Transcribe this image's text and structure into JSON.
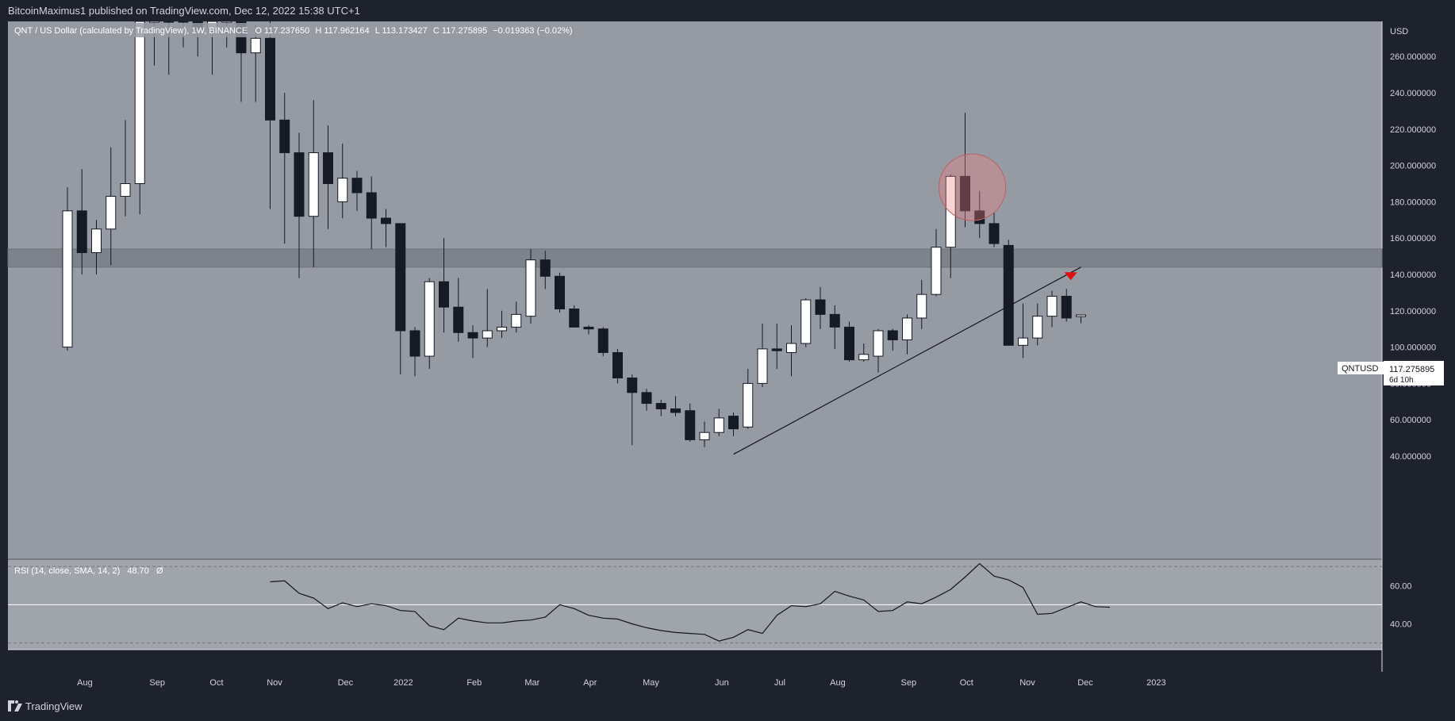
{
  "header": {
    "published": "BitcoinMaximus1 published on TradingView.com, Dec 12, 2022 15:38 UTC+1"
  },
  "footer": {
    "brand": "TradingView"
  },
  "chart": {
    "symbol_line": "QNT / US Dollar (calculated by TradingView), 1W, BINANCE",
    "o_label": "O",
    "o_value": "117.237650",
    "h_label": "H",
    "h_value": "117.962164",
    "l_label": "L",
    "l_value": "113.173427",
    "c_label": "C",
    "c_value": "117.275895",
    "change": "−0.019363 (−0.02%)",
    "currency": "USD",
    "price_tag_symbol": "QNTUSD",
    "price_tag_value": "117.275895",
    "price_tag_countdown": "6d 10h",
    "rsi_label": "RSI (14, close, SMA, 14, 2)",
    "rsi_value": "48.70",
    "rsi_extra": "Ø"
  },
  "colors": {
    "up": "#ffffff",
    "down": "#161a25",
    "bg_price": "#959aa3",
    "bg_rsi": "#a0a4ab",
    "zone": "#7c8088",
    "circle": "#f08080",
    "arrow": "#e01010"
  },
  "chart_data": {
    "type": "candlestick",
    "interval": "1W",
    "price_axis": {
      "ylim": [
        35,
        272
      ],
      "ticks": [
        40,
        60,
        80,
        100,
        120,
        140,
        160,
        180,
        200,
        220,
        240,
        260
      ],
      "tick_labels": [
        "40.000000",
        "60.000000",
        "80.000000",
        "100.000000",
        "120.000000",
        "140.000000",
        "160.000000",
        "180.000000",
        "200.000000",
        "220.000000",
        "240.000000",
        "260.000000"
      ]
    },
    "x_axis_labels": [
      "Aug",
      "Sep",
      "Oct",
      "Nov",
      "Dec",
      "2022",
      "Feb",
      "Mar",
      "Apr",
      "May",
      "Jun",
      "Jul",
      "Aug",
      "Sep",
      "Oct",
      "Nov",
      "Dec",
      "2023"
    ],
    "x_axis_label_weeks": [
      1.2,
      6.2,
      10.3,
      14.3,
      19.2,
      23.2,
      28.1,
      32.1,
      36.1,
      40.3,
      45.2,
      49.2,
      53.2,
      58.1,
      62.1,
      66.3,
      70.3,
      75.2
    ],
    "candles": [
      {
        "o": 100,
        "h": 188,
        "l": 98,
        "c": 175
      },
      {
        "o": 175,
        "h": 198,
        "l": 140,
        "c": 152
      },
      {
        "o": 152,
        "h": 170,
        "l": 140,
        "c": 165
      },
      {
        "o": 165,
        "h": 210,
        "l": 145,
        "c": 183
      },
      {
        "o": 183,
        "h": 225,
        "l": 172,
        "c": 190
      },
      {
        "o": 190,
        "h": 300,
        "l": 173,
        "c": 300
      },
      {
        "o": 300,
        "h": 320,
        "l": 255,
        "c": 300
      },
      {
        "o": 300,
        "h": 310,
        "l": 250,
        "c": 290
      },
      {
        "o": 290,
        "h": 300,
        "l": 265,
        "c": 280
      },
      {
        "o": 280,
        "h": 290,
        "l": 260,
        "c": 275
      },
      {
        "o": 275,
        "h": 290,
        "l": 250,
        "c": 280
      },
      {
        "o": 280,
        "h": 300,
        "l": 265,
        "c": 285
      },
      {
        "o": 285,
        "h": 300,
        "l": 235,
        "c": 262
      },
      {
        "o": 262,
        "h": 278,
        "l": 235,
        "c": 270
      },
      {
        "o": 270,
        "h": 280,
        "l": 176,
        "c": 225
      },
      {
        "o": 225,
        "h": 240,
        "l": 157,
        "c": 207
      },
      {
        "o": 207,
        "h": 218,
        "l": 138,
        "c": 172
      },
      {
        "o": 172,
        "h": 236,
        "l": 144,
        "c": 207
      },
      {
        "o": 207,
        "h": 222,
        "l": 165,
        "c": 190
      },
      {
        "o": 180,
        "h": 212,
        "l": 171,
        "c": 193
      },
      {
        "o": 193,
        "h": 197,
        "l": 175,
        "c": 185
      },
      {
        "o": 185,
        "h": 194,
        "l": 154,
        "c": 171
      },
      {
        "o": 171,
        "h": 176,
        "l": 155,
        "c": 168
      },
      {
        "o": 168,
        "h": 168,
        "l": 85,
        "c": 109
      },
      {
        "o": 109,
        "h": 111,
        "l": 84,
        "c": 95
      },
      {
        "o": 95,
        "h": 138,
        "l": 88,
        "c": 136
      },
      {
        "o": 136,
        "h": 160,
        "l": 108,
        "c": 122
      },
      {
        "o": 122,
        "h": 138,
        "l": 103,
        "c": 108
      },
      {
        "o": 108,
        "h": 112,
        "l": 94,
        "c": 105
      },
      {
        "o": 105,
        "h": 132,
        "l": 100,
        "c": 109
      },
      {
        "o": 109,
        "h": 120,
        "l": 105,
        "c": 111
      },
      {
        "o": 111,
        "h": 125,
        "l": 108,
        "c": 118
      },
      {
        "o": 117,
        "h": 154,
        "l": 113,
        "c": 148
      },
      {
        "o": 148,
        "h": 153,
        "l": 132,
        "c": 139
      },
      {
        "o": 139,
        "h": 141,
        "l": 119,
        "c": 121
      },
      {
        "o": 121,
        "h": 123,
        "l": 111,
        "c": 111
      },
      {
        "o": 111,
        "h": 112,
        "l": 107,
        "c": 110
      },
      {
        "o": 110,
        "h": 111,
        "l": 95,
        "c": 97
      },
      {
        "o": 97,
        "h": 99,
        "l": 80,
        "c": 83
      },
      {
        "o": 83,
        "h": 85,
        "l": 46,
        "c": 75
      },
      {
        "o": 75,
        "h": 77,
        "l": 65,
        "c": 69
      },
      {
        "o": 69,
        "h": 71,
        "l": 62,
        "c": 66
      },
      {
        "o": 66,
        "h": 73,
        "l": 62,
        "c": 64
      },
      {
        "o": 65,
        "h": 69,
        "l": 48,
        "c": 49
      },
      {
        "o": 49,
        "h": 59,
        "l": 45,
        "c": 53
      },
      {
        "o": 53,
        "h": 66,
        "l": 51,
        "c": 61
      },
      {
        "o": 62,
        "h": 64,
        "l": 51,
        "c": 55
      },
      {
        "o": 56,
        "h": 88,
        "l": 55,
        "c": 80
      },
      {
        "o": 80,
        "h": 113,
        "l": 78,
        "c": 99
      },
      {
        "o": 99,
        "h": 113,
        "l": 88,
        "c": 98
      },
      {
        "o": 97,
        "h": 112,
        "l": 84,
        "c": 102
      },
      {
        "o": 102,
        "h": 127,
        "l": 100,
        "c": 126
      },
      {
        "o": 126,
        "h": 133,
        "l": 110,
        "c": 118
      },
      {
        "o": 118,
        "h": 123,
        "l": 99,
        "c": 111
      },
      {
        "o": 111,
        "h": 114,
        "l": 92,
        "c": 93
      },
      {
        "o": 93,
        "h": 102,
        "l": 92,
        "c": 96
      },
      {
        "o": 95,
        "h": 110,
        "l": 86,
        "c": 109
      },
      {
        "o": 109,
        "h": 110,
        "l": 98,
        "c": 104
      },
      {
        "o": 104,
        "h": 118,
        "l": 96,
        "c": 116
      },
      {
        "o": 116,
        "h": 137,
        "l": 110,
        "c": 129
      },
      {
        "o": 129,
        "h": 165,
        "l": 128,
        "c": 155
      },
      {
        "o": 155,
        "h": 195,
        "l": 138,
        "c": 194
      },
      {
        "o": 194,
        "h": 229,
        "l": 166,
        "c": 175
      },
      {
        "o": 175,
        "h": 186,
        "l": 160,
        "c": 168
      },
      {
        "o": 168,
        "h": 174,
        "l": 155,
        "c": 157
      },
      {
        "o": 156,
        "h": 159,
        "l": 101,
        "c": 101
      },
      {
        "o": 101,
        "h": 124,
        "l": 94,
        "c": 105
      },
      {
        "o": 105,
        "h": 124,
        "l": 101,
        "c": 117
      },
      {
        "o": 117,
        "h": 131,
        "l": 111,
        "c": 128
      },
      {
        "o": 128,
        "h": 132,
        "l": 114,
        "c": 116
      },
      {
        "o": 117.24,
        "h": 117.96,
        "l": 113.17,
        "c": 117.28
      }
    ],
    "horizontal_zone": {
      "from": 144,
      "to": 154
    },
    "trendline": {
      "from": {
        "week": 46,
        "price": 41
      },
      "to": {
        "week": 70,
        "price": 144
      }
    },
    "highlight_circle": {
      "week": 62.5,
      "price": 188
    },
    "arrow_marker": {
      "week": 69.3,
      "price": 139
    },
    "rsi": {
      "ylim": [
        27,
        77
      ],
      "ticks": [
        40,
        60
      ],
      "tick_labels": [
        "40.00",
        "60.00"
      ],
      "band_upper": 70,
      "band_lower": 30,
      "mid": 50,
      "values": [
        null,
        null,
        null,
        null,
        null,
        null,
        null,
        null,
        null,
        null,
        null,
        null,
        null,
        null,
        62,
        62.5,
        56,
        53.5,
        48,
        51,
        49,
        50.5,
        49.5,
        47,
        46.5,
        39,
        37,
        43,
        41.5,
        40.5,
        40.5,
        41.5,
        42,
        43.5,
        50,
        48,
        44.5,
        43,
        42.5,
        40,
        38,
        36.5,
        35.5,
        35,
        34.5,
        31,
        33,
        37,
        35,
        44.5,
        49.5,
        49,
        50.5,
        57,
        54.5,
        52.5,
        46.5,
        47,
        51.5,
        50.5,
        54,
        58,
        64.5,
        71.5,
        65,
        63,
        59,
        45,
        45.5,
        48.5,
        51.5,
        49,
        48.7
      ]
    }
  }
}
